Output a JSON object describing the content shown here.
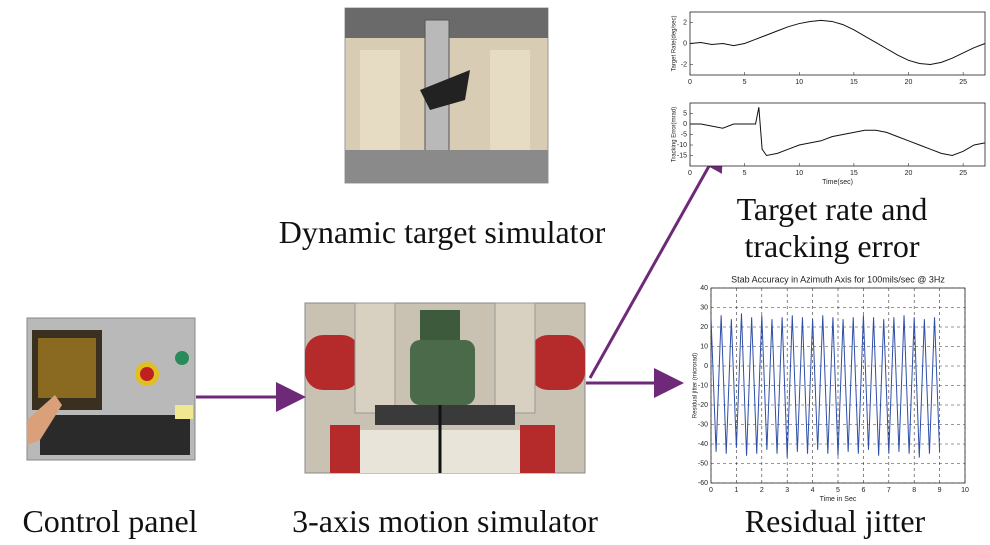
{
  "labels": {
    "dynamic_target": "Dynamic target simulator",
    "control_panel": "Control panel",
    "motion_simulator": "3-axis motion simulator",
    "target_rate_1": "Target rate and",
    "target_rate_2": "tracking error",
    "residual_jitter": "Residual jitter"
  },
  "chart_data": [
    {
      "type": "line",
      "ylabel": "Target Rate(deg/sec)",
      "x": [
        0,
        1,
        2,
        3,
        4,
        5,
        6,
        7,
        8,
        9,
        10,
        11,
        12,
        13,
        14,
        15,
        16,
        17,
        18,
        19,
        20,
        21,
        22,
        23,
        24,
        25,
        26,
        27
      ],
      "series": [
        {
          "color": "#111111",
          "values": [
            0,
            0.1,
            -0.1,
            0,
            -0.2,
            0,
            0.4,
            0.8,
            1.2,
            1.6,
            1.9,
            2.1,
            2.2,
            2.1,
            1.8,
            1.3,
            0.7,
            0.1,
            -0.5,
            -1.1,
            -1.6,
            -1.9,
            -2,
            -1.8,
            -1.4,
            -0.9,
            -0.4,
            0
          ]
        }
      ],
      "xlim": [
        0,
        27
      ],
      "xticks": [
        0,
        5,
        10,
        15,
        20,
        25
      ],
      "ylim": [
        -3,
        3
      ],
      "yticks": [
        -2,
        0,
        2
      ],
      "grid": false
    },
    {
      "type": "line",
      "ylabel": "Tracking Error(mrad)",
      "xlabel": "Time(sec)",
      "x": [
        0,
        1,
        2,
        3,
        4,
        5,
        6,
        6.3,
        6.6,
        7,
        8,
        9,
        10,
        11,
        12,
        13,
        14,
        15,
        16,
        17,
        18,
        19,
        20,
        21,
        22,
        23,
        24,
        25,
        26,
        27
      ],
      "series": [
        {
          "color": "#111111",
          "values": [
            0,
            0,
            -1,
            -2,
            0,
            0,
            0,
            8,
            -12,
            -15,
            -14,
            -12,
            -10,
            -9,
            -8,
            -6,
            -5,
            -4,
            -3,
            -3,
            -4,
            -6,
            -8,
            -10,
            -12,
            -14,
            -15,
            -13,
            -10,
            -9
          ]
        }
      ],
      "xlim": [
        0,
        27
      ],
      "xticks": [
        0,
        5,
        10,
        15,
        20,
        25
      ],
      "ylim": [
        -20,
        10
      ],
      "yticks": [
        -15,
        -10,
        -5,
        0,
        5
      ],
      "grid": false
    },
    {
      "type": "line",
      "title": "Stab Accuracy in Azimuth Axis for 100mils/sec @ 3Hz",
      "ylabel": "Residual jitter (microrad)",
      "xlabel": "Time in Sec",
      "x": [
        0,
        0.2,
        0.4,
        0.6,
        0.8,
        1,
        1.2,
        1.4,
        1.6,
        1.8,
        2,
        2.2,
        2.4,
        2.6,
        2.8,
        3,
        3.2,
        3.4,
        3.6,
        3.8,
        4,
        4.2,
        4.4,
        4.6,
        4.8,
        5,
        5.2,
        5.4,
        5.6,
        5.8,
        6,
        6.2,
        6.4,
        6.6,
        6.8,
        7,
        7.2,
        7.4,
        7.6,
        7.8,
        8,
        8.2,
        8.4,
        8.6,
        8.8,
        9
      ],
      "series": [
        {
          "color": "#2f4fa8",
          "values": [
            25,
            -44,
            26,
            -45,
            24,
            -42,
            27,
            -46,
            25,
            -45,
            26,
            -43,
            24,
            -45,
            25,
            -47,
            26,
            -44,
            25,
            -45,
            24,
            -43,
            26,
            -45,
            25,
            -46,
            24,
            -44,
            25,
            -45,
            26,
            -43,
            25,
            -46,
            24,
            -45,
            25,
            -44,
            26,
            -45,
            25,
            -47,
            24,
            -45,
            25,
            -44
          ]
        }
      ],
      "xlim": [
        0,
        10
      ],
      "xticks": [
        0,
        1,
        2,
        3,
        4,
        5,
        6,
        7,
        8,
        9,
        10
      ],
      "ylim": [
        -60,
        40
      ],
      "yticks": [
        -60,
        -50,
        -40,
        -30,
        -20,
        -10,
        0,
        10,
        20,
        30,
        40
      ],
      "grid": true
    }
  ]
}
